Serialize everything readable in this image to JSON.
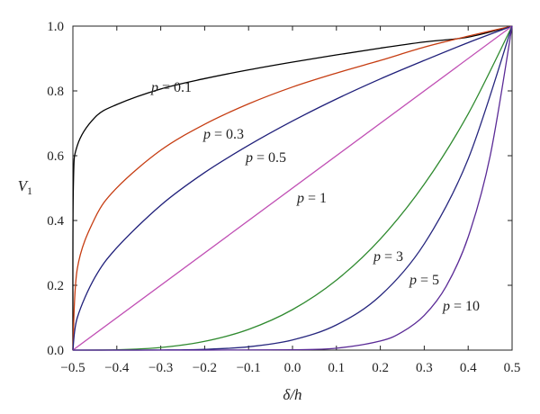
{
  "chart_data": {
    "type": "line",
    "xlabel": "δ/h",
    "ylabel": "V",
    "ylabel_subscript": "1",
    "xlim": [
      -0.5,
      0.5
    ],
    "ylim": [
      0.0,
      1.0
    ],
    "x_ticks": [
      "−0.5",
      "−0.4",
      "−0.3",
      "−0.2",
      "−0.1",
      "0.0",
      "0.1",
      "0.2",
      "0.3",
      "0.4",
      "0.5"
    ],
    "y_ticks": [
      "0.0",
      "0.2",
      "0.4",
      "0.6",
      "0.8",
      "1.0"
    ],
    "grid": false,
    "legend": "none (inline curve labels)",
    "series": [
      {
        "label_var": "p",
        "label_rest": " = 0.1",
        "color": "#000000",
        "x": [
          -0.5,
          -0.499,
          -0.49,
          -0.45,
          -0.4,
          -0.3,
          -0.2,
          -0.1,
          0.0,
          0.1,
          0.2,
          0.3,
          0.4,
          0.5
        ],
        "y": [
          0.0,
          0.501,
          0.631,
          0.718,
          0.758,
          0.806,
          0.838,
          0.865,
          0.889,
          0.911,
          0.932,
          0.951,
          0.966,
          1.0
        ]
      },
      {
        "label_var": "p",
        "label_rest": " = 0.3",
        "color": "#c63d12",
        "x": [
          -0.5,
          -0.49,
          -0.45,
          -0.4,
          -0.3,
          -0.2,
          -0.1,
          0.0,
          0.1,
          0.2,
          0.3,
          0.4,
          0.5
        ],
        "y": [
          0.0,
          0.251,
          0.407,
          0.501,
          0.617,
          0.697,
          0.76,
          0.812,
          0.855,
          0.894,
          0.935,
          0.969,
          1.0
        ]
      },
      {
        "label_var": "p",
        "label_rest": " = 0.5",
        "color": "#1f1f7a",
        "x": [
          -0.5,
          -0.49,
          -0.45,
          -0.4,
          -0.3,
          -0.2,
          -0.1,
          0.0,
          0.1,
          0.2,
          0.3,
          0.4,
          0.5
        ],
        "y": [
          0.0,
          0.1,
          0.224,
          0.316,
          0.447,
          0.548,
          0.632,
          0.707,
          0.775,
          0.837,
          0.894,
          0.949,
          1.0
        ]
      },
      {
        "label_var": "p",
        "label_rest": " = 1",
        "color": "#c04fb4",
        "x": [
          -0.5,
          0.5
        ],
        "y": [
          0.0,
          1.0
        ]
      },
      {
        "label_var": "p",
        "label_rest": " = 3",
        "color": "#2f8a2f",
        "x": [
          -0.5,
          -0.4,
          -0.3,
          -0.2,
          -0.1,
          0.0,
          0.1,
          0.2,
          0.3,
          0.4,
          0.5
        ],
        "y": [
          0.0,
          0.001,
          0.008,
          0.027,
          0.064,
          0.125,
          0.216,
          0.343,
          0.512,
          0.729,
          1.0
        ]
      },
      {
        "label_var": "p",
        "label_rest": " = 5",
        "color": "#26267e",
        "x": [
          -0.5,
          -0.4,
          -0.3,
          -0.2,
          -0.1,
          0.0,
          0.1,
          0.2,
          0.3,
          0.4,
          0.5
        ],
        "y": [
          0.0,
          0.0,
          0.0003,
          0.0024,
          0.0102,
          0.0313,
          0.0778,
          0.168,
          0.328,
          0.59,
          1.0
        ]
      },
      {
        "label_var": "p",
        "label_rest": " = 10",
        "color": "#5a2a96",
        "x": [
          -0.5,
          -0.2,
          0.0,
          0.1,
          0.2,
          0.25,
          0.3,
          0.35,
          0.4,
          0.45,
          0.5
        ],
        "y": [
          0.0,
          0.0,
          0.001,
          0.006,
          0.028,
          0.056,
          0.107,
          0.197,
          0.349,
          0.599,
          1.0
        ]
      }
    ]
  }
}
